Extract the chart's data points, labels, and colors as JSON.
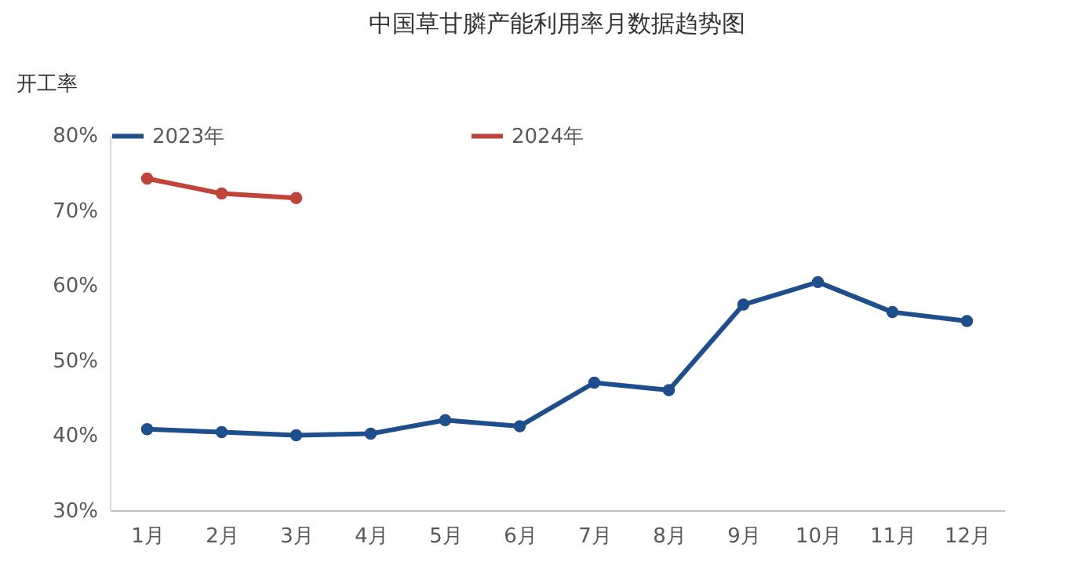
{
  "chart_data": {
    "type": "line",
    "title": "中国草甘膦产能利用率月数据趋势图",
    "ylabel": "开工率",
    "categories": [
      "1月",
      "2月",
      "3月",
      "4月",
      "5月",
      "6月",
      "7月",
      "8月",
      "9月",
      "10月",
      "11月",
      "12月"
    ],
    "series": [
      {
        "name": "2023年",
        "color": "#1f4e8c",
        "values": [
          40.8,
          40.4,
          40.0,
          40.2,
          42.0,
          41.2,
          47.0,
          46.0,
          57.4,
          60.4,
          56.4,
          55.2
        ]
      },
      {
        "name": "2024年",
        "color": "#c0443a",
        "values": [
          74.2,
          72.2,
          71.6,
          null,
          null,
          null,
          null,
          null,
          null,
          null,
          null,
          null
        ]
      }
    ],
    "ylim": [
      30,
      80
    ],
    "yticks": [
      {
        "value": 30,
        "label": "30%"
      },
      {
        "value": 40,
        "label": "40%"
      },
      {
        "value": 50,
        "label": "50%"
      },
      {
        "value": 60,
        "label": "60%"
      },
      {
        "value": 70,
        "label": "70%"
      },
      {
        "value": 80,
        "label": "80%"
      }
    ],
    "grid": false,
    "legend": "top",
    "marker": "circle",
    "line_style": "solid"
  }
}
